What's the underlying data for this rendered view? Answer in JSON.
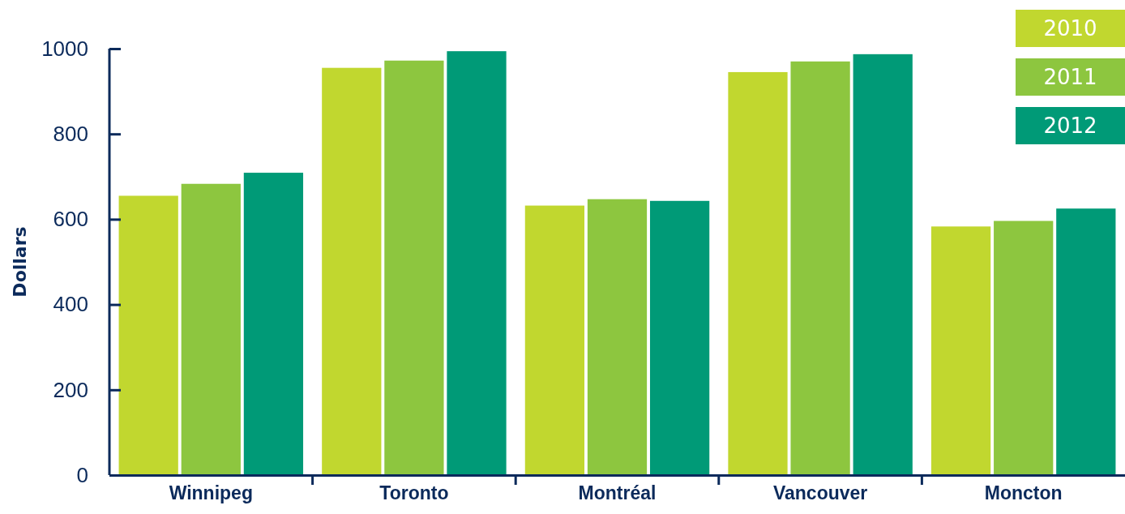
{
  "chart_data": {
    "type": "bar",
    "ylabel": "Dollars",
    "categories": [
      "Winnipeg",
      "Toronto",
      "Montréal",
      "Vancouver",
      "Moncton"
    ],
    "series": [
      {
        "name": "2010",
        "color": "#c1d72f",
        "values": [
          655,
          955,
          632,
          945,
          583
        ]
      },
      {
        "name": "2011",
        "color": "#8dc63f",
        "values": [
          683,
          972,
          647,
          970,
          596
        ]
      },
      {
        "name": "2012",
        "color": "#009a77",
        "values": [
          709,
          994,
          643,
          987,
          625
        ]
      }
    ],
    "ylim": [
      0,
      1000
    ],
    "yticks": [
      0,
      200,
      400,
      600,
      800,
      1000
    ],
    "grid": false,
    "legend": "top right"
  }
}
